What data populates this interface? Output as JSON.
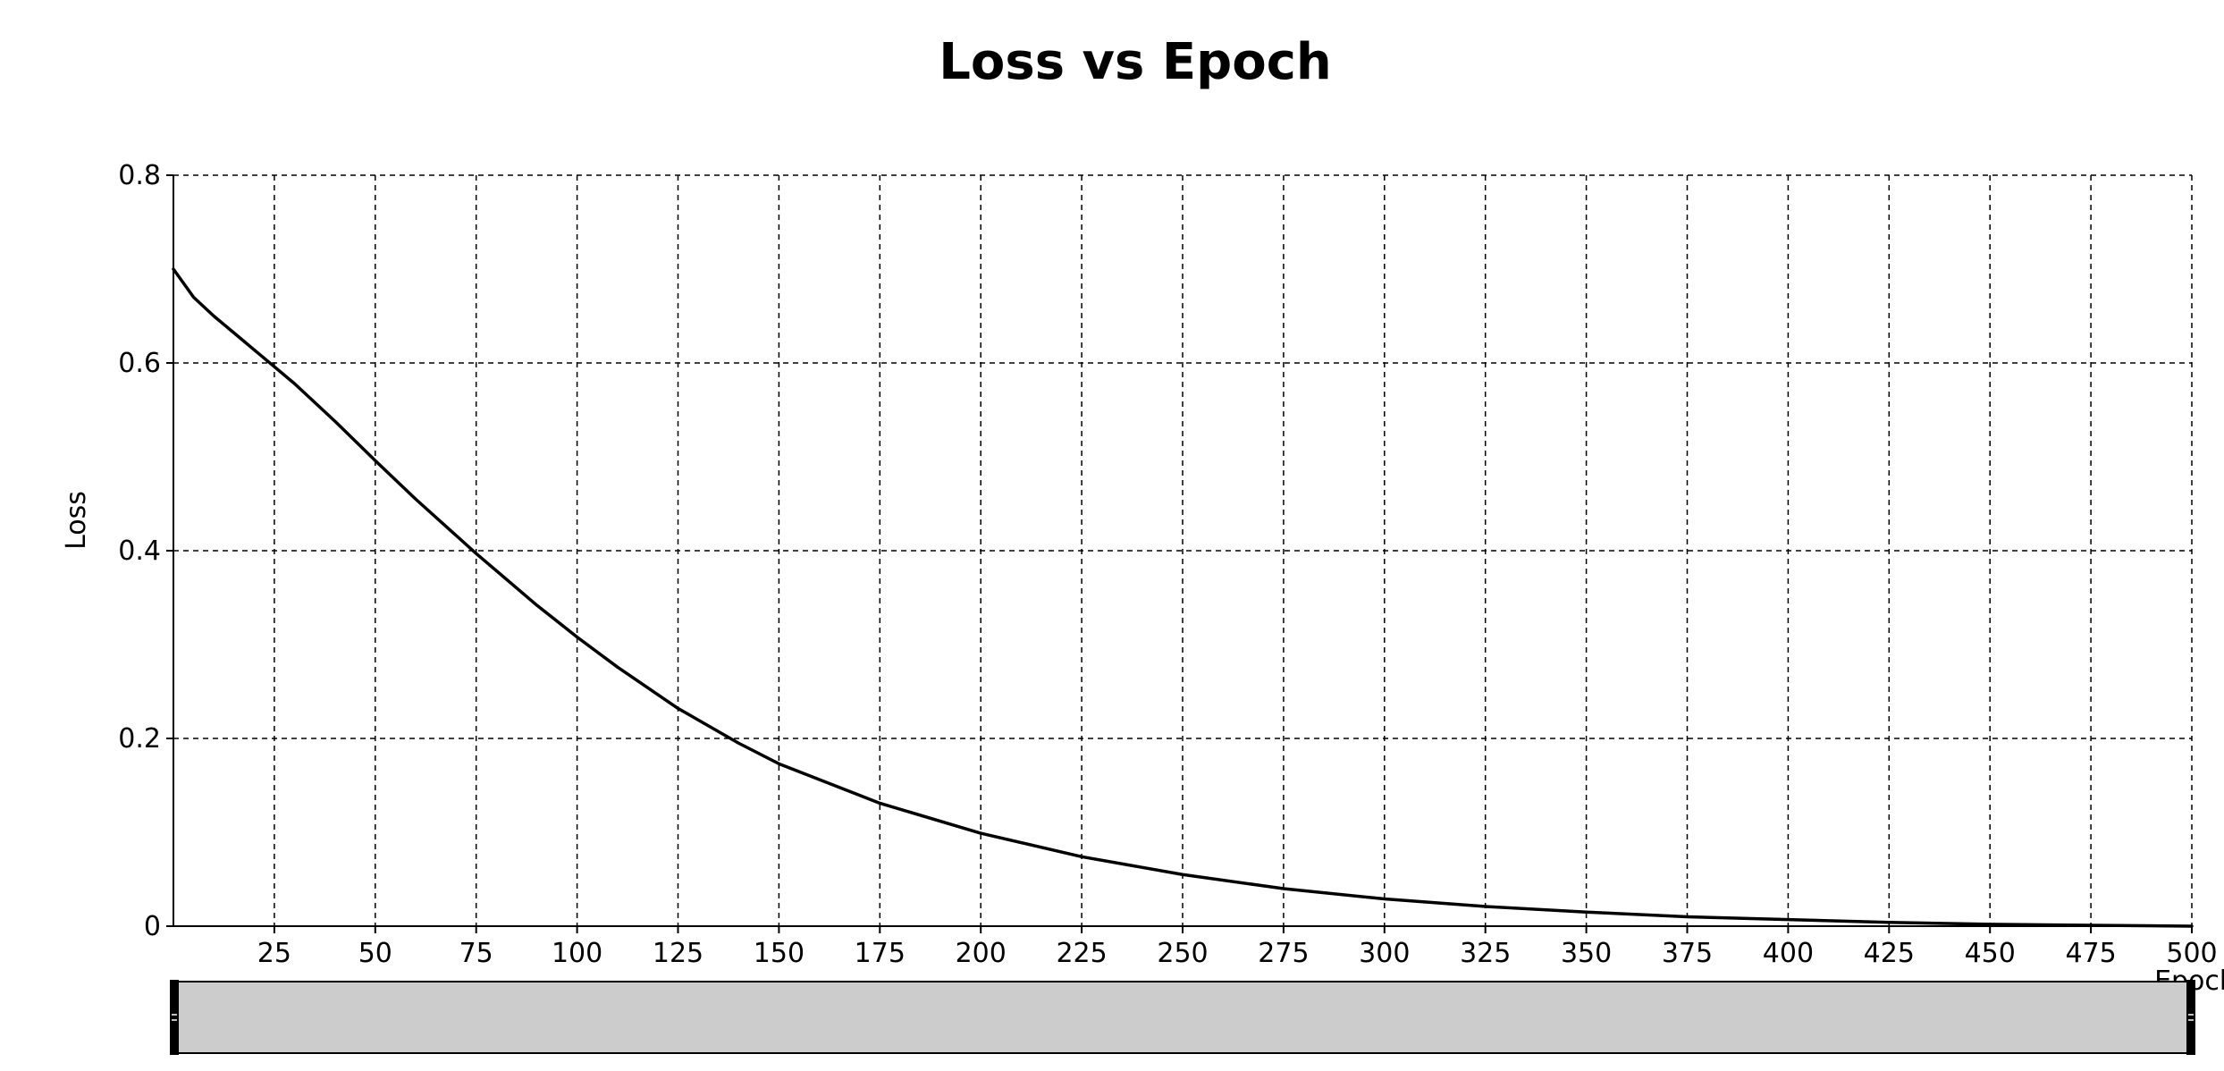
{
  "chart_data": {
    "type": "line",
    "title": "Loss vs Epoch",
    "xlabel": "Epoch",
    "ylabel": "Loss",
    "xlim": [
      0,
      500
    ],
    "ylim": [
      0,
      0.8
    ],
    "x_ticks": [
      25,
      50,
      75,
      100,
      125,
      150,
      175,
      200,
      225,
      250,
      275,
      300,
      325,
      350,
      375,
      400,
      425,
      450,
      475,
      500
    ],
    "y_ticks": [
      0,
      0.2,
      0.4,
      0.6,
      0.8
    ],
    "y_tick_labels": [
      "0",
      "0.2",
      "0.4",
      "0.6",
      "0.8"
    ],
    "grid": true,
    "series": [
      {
        "x": [
          0,
          5,
          10,
          15,
          20,
          25,
          30,
          40,
          50,
          60,
          75,
          90,
          100,
          110,
          125,
          140,
          150,
          175,
          200,
          225,
          250,
          275,
          300,
          325,
          350,
          375,
          400,
          425,
          450,
          475,
          500
        ],
        "y": [
          0.7,
          0.67,
          0.65,
          0.632,
          0.614,
          0.596,
          0.578,
          0.538,
          0.496,
          0.455,
          0.397,
          0.342,
          0.308,
          0.276,
          0.232,
          0.195,
          0.173,
          0.131,
          0.099,
          0.074,
          0.055,
          0.04,
          0.029,
          0.021,
          0.015,
          0.01,
          0.007,
          0.004,
          0.002,
          0.001,
          0.0
        ]
      }
    ],
    "zoom_slider": {
      "range": [
        0,
        500
      ]
    }
  }
}
